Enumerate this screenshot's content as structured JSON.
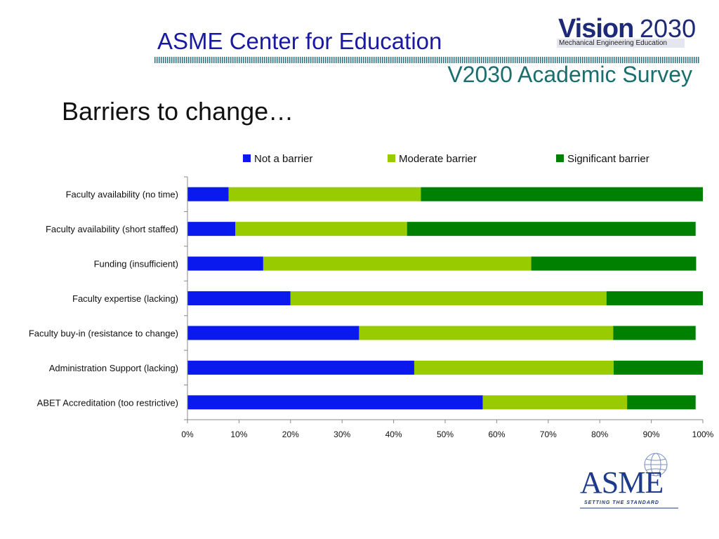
{
  "header": {
    "title": "ASME Center for Education",
    "subtitle": "V2030 Academic Survey"
  },
  "logo_vision": {
    "word": "Vision",
    "year": "2030",
    "tagline": "Mechanical Engineering Education"
  },
  "page_heading": "Barriers to change…",
  "logo_asme": {
    "text": "ASME",
    "tagline": "SETTING THE STANDARD"
  },
  "colors": {
    "title_blue": "#1a1aa0",
    "subtitle_teal": "#1a6e6e",
    "not_barrier": "#0a1aee",
    "moderate_barrier": "#99cc00",
    "significant_barrier": "#008000"
  },
  "chart_data": {
    "type": "bar",
    "orientation": "horizontal",
    "stacked": true,
    "title": "",
    "xlabel": "",
    "ylabel": "",
    "xlim": [
      0,
      100
    ],
    "x_ticks": [
      "0%",
      "10%",
      "20%",
      "30%",
      "40%",
      "50%",
      "60%",
      "70%",
      "80%",
      "90%",
      "100%"
    ],
    "legend_position": "top",
    "grid": false,
    "categories": [
      "Faculty availability (no time)",
      "Faculty availability (short staffed)",
      "Funding (insufficient)",
      "Faculty expertise (lacking)",
      "Faculty buy-in (resistance to change)",
      "Administration Support (lacking)",
      "ABET Accreditation (too restrictive)"
    ],
    "series": [
      {
        "name": "Not a barrier",
        "color": "#0a1aee",
        "values": [
          8,
          9.3,
          14.7,
          20,
          33.3,
          44,
          57.3
        ]
      },
      {
        "name": "Moderate barrier",
        "color": "#99cc00",
        "values": [
          37.3,
          33.3,
          52,
          61.3,
          49.3,
          38.7,
          28
        ]
      },
      {
        "name": "Significant barrier",
        "color": "#008000",
        "values": [
          54.7,
          56,
          32,
          18.7,
          16,
          17.3,
          13.3
        ]
      }
    ]
  }
}
